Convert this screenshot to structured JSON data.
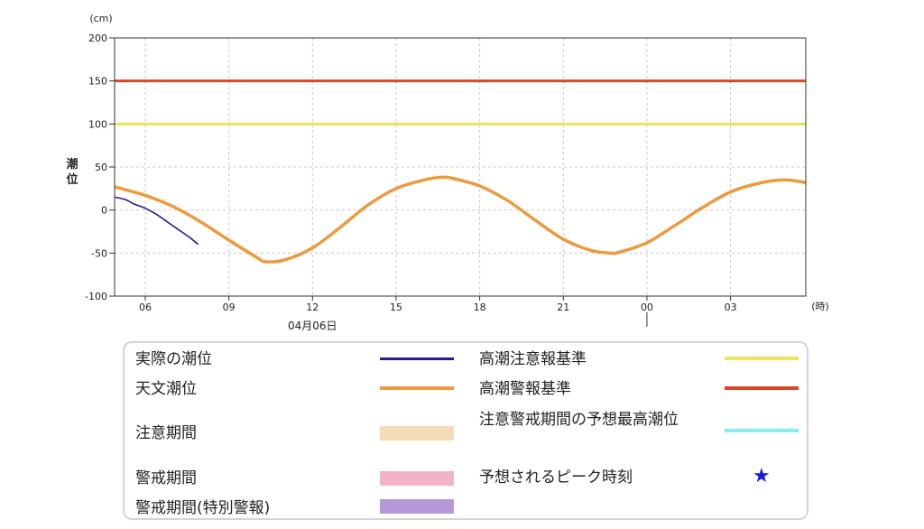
{
  "chart_data": {
    "type": "line",
    "ylabel": "潮位",
    "yunit": "(cm)",
    "xunit": "(時)",
    "ylim": [
      -100,
      200
    ],
    "yticks": [
      -100,
      -50,
      0,
      50,
      100,
      150,
      200
    ],
    "x_start_hour": 4.9,
    "x_end_hour": 29.7,
    "xticks": [
      {
        "hour": 6,
        "label": "06"
      },
      {
        "hour": 9,
        "label": "09"
      },
      {
        "hour": 12,
        "label": "12"
      },
      {
        "hour": 15,
        "label": "15"
      },
      {
        "hour": 18,
        "label": "18"
      },
      {
        "hour": 21,
        "label": "21"
      },
      {
        "hour": 24,
        "label": "00"
      },
      {
        "hour": 27,
        "label": "03"
      }
    ],
    "date_label": "04月06日",
    "date_label_hour": 12,
    "day_boundary_hour": 24,
    "grid": true,
    "thresholds": [
      {
        "name": "高潮警報基準",
        "value": 150,
        "color": "#d9472b"
      },
      {
        "name": "高潮注意報基準",
        "value": 100,
        "color": "#eee25a"
      }
    ],
    "series": [
      {
        "name": "天文潮位",
        "color": "#ec9a3e",
        "x": [
          4.9,
          6,
          7,
          8,
          9,
          10,
          10.3,
          11,
          12,
          13,
          14,
          15,
          16,
          16.6,
          17,
          18,
          19,
          20,
          21,
          22,
          22.7,
          23,
          24,
          25,
          26,
          27,
          28,
          28.9,
          29.7
        ],
        "y": [
          27,
          17,
          4,
          -14,
          -35,
          -55,
          -60,
          -58,
          -44,
          -20,
          6,
          25,
          35,
          38,
          37,
          28,
          11,
          -12,
          -34,
          -47,
          -50,
          -49,
          -38,
          -18,
          3,
          21,
          31,
          35,
          32
        ]
      },
      {
        "name": "実際の潮位",
        "color": "#2b1a9b",
        "x": [
          4.9,
          5.3,
          5.6,
          6.0,
          6.4,
          6.8,
          7.2,
          7.6,
          7.9
        ],
        "y": [
          15,
          12,
          7,
          2,
          -5,
          -14,
          -23,
          -32,
          -40
        ]
      }
    ]
  },
  "legend": {
    "items": [
      {
        "label": "実際の潮位",
        "color": "#2b1a9b"
      },
      {
        "label": "天文潮位",
        "color": "#ec9a3e"
      },
      {
        "label": "注意期間",
        "color": "#f5dcb6"
      },
      {
        "label": "警戒期間",
        "color": "#f2b3c9"
      },
      {
        "label": "警戒期間(特別警報)",
        "color": "#b49ad9"
      },
      {
        "label": "高潮注意報基準",
        "color": "#eee25a"
      },
      {
        "label": "高潮警報基準",
        "color": "#d9472b"
      },
      {
        "label": "注意警戒期間の予想最高潮位",
        "color": "#7ef0f0"
      },
      {
        "label": "予想されるピーク時刻",
        "color": "#1a1ae6",
        "icon": "star-icon"
      }
    ]
  }
}
